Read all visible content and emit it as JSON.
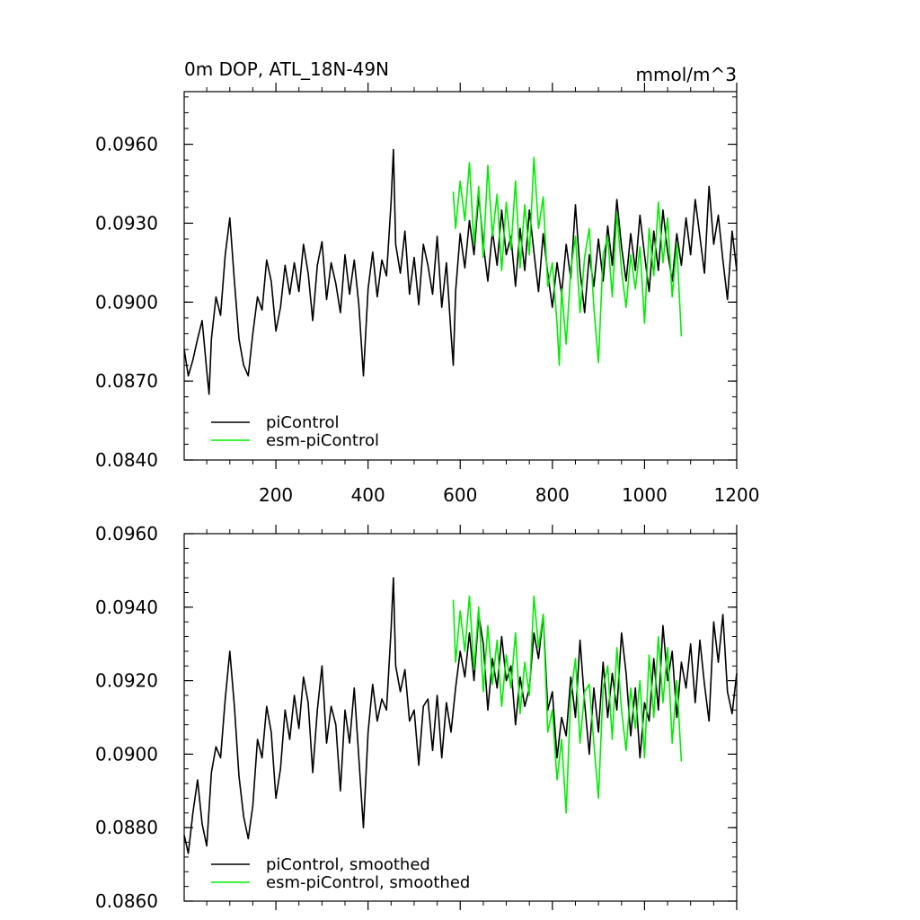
{
  "header": {
    "title": "0m DOP, ATL_18N-49N",
    "units": "mmol/m^3"
  },
  "colors": {
    "piControl": "#000000",
    "esm_piControl": "#00ee00",
    "frame": "#000000"
  },
  "chart_data": [
    {
      "type": "line",
      "title": "0m DOP, ATL_18N-49N",
      "units": "mmol/m^3",
      "xlabel": "",
      "ylabel": "",
      "xlim": [
        1,
        1200
      ],
      "ylim": [
        0.084,
        0.098
      ],
      "xticks": [
        200,
        400,
        600,
        800,
        1000,
        1200
      ],
      "xtick_labels": [
        "200",
        "400",
        "600",
        "800",
        "1000",
        "1200"
      ],
      "yticks": [
        0.084,
        0.087,
        0.09,
        0.093,
        0.096
      ],
      "ytick_labels": [
        "0.0840",
        "0.0870",
        "0.0900",
        "0.0930",
        "0.0960"
      ],
      "legend": [
        "piControl",
        "esm-piControl"
      ],
      "legend_position": "bottom-left",
      "series": [
        {
          "name": "piControl",
          "x": [
            1,
            10,
            20,
            30,
            40,
            50,
            55,
            60,
            70,
            80,
            90,
            100,
            110,
            120,
            130,
            140,
            150,
            160,
            170,
            180,
            190,
            200,
            210,
            220,
            230,
            240,
            250,
            260,
            270,
            280,
            290,
            300,
            310,
            320,
            330,
            340,
            350,
            360,
            370,
            380,
            390,
            400,
            410,
            420,
            430,
            440,
            450,
            455,
            460,
            470,
            480,
            490,
            500,
            510,
            520,
            530,
            540,
            550,
            560,
            570,
            580,
            585,
            590,
            600,
            610,
            620,
            630,
            640,
            650,
            660,
            670,
            680,
            690,
            700,
            710,
            720,
            730,
            740,
            750,
            760,
            770,
            780,
            790,
            800,
            810,
            820,
            830,
            840,
            850,
            860,
            870,
            880,
            890,
            900,
            910,
            920,
            930,
            940,
            950,
            960,
            970,
            980,
            990,
            1000,
            1010,
            1020,
            1030,
            1040,
            1050,
            1060,
            1070,
            1080,
            1090,
            1100,
            1110,
            1120,
            1130,
            1140,
            1150,
            1160,
            1170,
            1180,
            1190,
            1200
          ],
          "values": [
            0.0882,
            0.0872,
            0.0878,
            0.0886,
            0.0893,
            0.0874,
            0.0865,
            0.0886,
            0.0902,
            0.0895,
            0.0918,
            0.0932,
            0.0908,
            0.0886,
            0.0876,
            0.0872,
            0.0888,
            0.0902,
            0.0897,
            0.0916,
            0.0908,
            0.0889,
            0.0898,
            0.0914,
            0.0903,
            0.0915,
            0.0904,
            0.0922,
            0.0911,
            0.0893,
            0.0914,
            0.0923,
            0.0901,
            0.0915,
            0.0907,
            0.0896,
            0.0918,
            0.0903,
            0.0916,
            0.0899,
            0.0872,
            0.0905,
            0.0919,
            0.0902,
            0.0916,
            0.091,
            0.0938,
            0.0958,
            0.0922,
            0.0911,
            0.0927,
            0.0903,
            0.0917,
            0.0899,
            0.0922,
            0.0914,
            0.0903,
            0.0925,
            0.0898,
            0.0915,
            0.0888,
            0.0876,
            0.0904,
            0.0926,
            0.0913,
            0.0931,
            0.0918,
            0.0941,
            0.0922,
            0.0908,
            0.0927,
            0.0914,
            0.0935,
            0.0918,
            0.0925,
            0.0906,
            0.0928,
            0.0912,
            0.0935,
            0.0919,
            0.0904,
            0.0926,
            0.0911,
            0.0898,
            0.0915,
            0.0903,
            0.0922,
            0.0909,
            0.0937,
            0.0912,
            0.0896,
            0.0918,
            0.0906,
            0.0924,
            0.0908,
            0.0929,
            0.0914,
            0.0939,
            0.0921,
            0.0908,
            0.0926,
            0.0912,
            0.0933,
            0.0918,
            0.0904,
            0.0927,
            0.0912,
            0.0935,
            0.0919,
            0.0908,
            0.0926,
            0.0914,
            0.0932,
            0.0918,
            0.0939,
            0.0925,
            0.0911,
            0.0944,
            0.0922,
            0.0933,
            0.0916,
            0.0901,
            0.0927,
            0.0912
          ]
        },
        {
          "name": "esm-piControl",
          "x": [
            585,
            590,
            600,
            610,
            620,
            630,
            640,
            650,
            660,
            670,
            680,
            690,
            700,
            710,
            720,
            730,
            740,
            750,
            760,
            770,
            780,
            790,
            800,
            810,
            815,
            820,
            830,
            840,
            850,
            860,
            870,
            880,
            890,
            900,
            910,
            920,
            930,
            940,
            950,
            960,
            970,
            980,
            990,
            1000,
            1010,
            1020,
            1030,
            1040,
            1050,
            1060,
            1070,
            1080
          ],
          "values": [
            0.0942,
            0.0928,
            0.0946,
            0.0931,
            0.0953,
            0.0922,
            0.0944,
            0.0917,
            0.0952,
            0.0925,
            0.0941,
            0.0912,
            0.0938,
            0.092,
            0.0946,
            0.0913,
            0.0937,
            0.0918,
            0.0955,
            0.0928,
            0.094,
            0.0906,
            0.0915,
            0.0892,
            0.0876,
            0.0905,
            0.0884,
            0.0912,
            0.0925,
            0.0896,
            0.0917,
            0.0928,
            0.0898,
            0.0877,
            0.0918,
            0.0925,
            0.0902,
            0.0934,
            0.0912,
            0.0898,
            0.0918,
            0.0905,
            0.0921,
            0.0892,
            0.0928,
            0.091,
            0.0938,
            0.0915,
            0.0932,
            0.0902,
            0.0922,
            0.0887
          ]
        }
      ]
    },
    {
      "type": "line",
      "xlabel": "",
      "ylabel": "",
      "xlim": [
        1,
        1200
      ],
      "ylim": [
        0.086,
        0.096
      ],
      "xticks": [
        200,
        400,
        600,
        800,
        1000,
        1200
      ],
      "yticks": [
        0.086,
        0.088,
        0.09,
        0.092,
        0.094,
        0.096
      ],
      "ytick_labels": [
        "0.0860",
        "0.0880",
        "0.0900",
        "0.0920",
        "0.0940",
        "0.0960"
      ],
      "legend": [
        "piControl, smoothed",
        "esm-piControl, smoothed"
      ],
      "legend_position": "bottom-left",
      "series": [
        {
          "name": "piControl, smoothed",
          "x": [
            1,
            10,
            20,
            30,
            40,
            50,
            60,
            70,
            80,
            90,
            100,
            110,
            120,
            130,
            140,
            150,
            160,
            170,
            180,
            190,
            200,
            210,
            220,
            230,
            240,
            250,
            260,
            270,
            280,
            290,
            300,
            310,
            320,
            330,
            340,
            350,
            360,
            370,
            380,
            390,
            400,
            410,
            420,
            430,
            440,
            450,
            455,
            460,
            470,
            480,
            490,
            500,
            510,
            520,
            530,
            540,
            550,
            560,
            570,
            580,
            590,
            600,
            610,
            620,
            630,
            640,
            650,
            660,
            670,
            680,
            690,
            700,
            710,
            720,
            730,
            740,
            750,
            760,
            770,
            780,
            790,
            800,
            810,
            820,
            830,
            840,
            850,
            860,
            870,
            880,
            890,
            900,
            910,
            920,
            930,
            940,
            950,
            960,
            970,
            980,
            990,
            1000,
            1010,
            1020,
            1030,
            1040,
            1050,
            1060,
            1070,
            1080,
            1090,
            1100,
            1110,
            1120,
            1130,
            1140,
            1150,
            1160,
            1170,
            1180,
            1190,
            1200
          ],
          "values": [
            0.0878,
            0.0873,
            0.0884,
            0.0893,
            0.0881,
            0.0875,
            0.0895,
            0.0902,
            0.0899,
            0.0915,
            0.0928,
            0.0913,
            0.0894,
            0.0883,
            0.0877,
            0.0886,
            0.0904,
            0.0899,
            0.0913,
            0.0906,
            0.0888,
            0.0896,
            0.0912,
            0.0904,
            0.0916,
            0.0907,
            0.0921,
            0.0914,
            0.0895,
            0.0912,
            0.0924,
            0.0903,
            0.0913,
            0.0908,
            0.089,
            0.0912,
            0.0903,
            0.0918,
            0.0899,
            0.088,
            0.0906,
            0.0919,
            0.0909,
            0.0915,
            0.0912,
            0.0934,
            0.0948,
            0.0924,
            0.0917,
            0.0923,
            0.0909,
            0.0912,
            0.0897,
            0.0913,
            0.0915,
            0.0901,
            0.0916,
            0.0899,
            0.0914,
            0.0906,
            0.0918,
            0.0928,
            0.0921,
            0.0933,
            0.092,
            0.0938,
            0.093,
            0.0912,
            0.0926,
            0.0918,
            0.0932,
            0.092,
            0.0924,
            0.0908,
            0.0921,
            0.0913,
            0.0918,
            0.0933,
            0.0926,
            0.0938,
            0.0912,
            0.0917,
            0.0899,
            0.091,
            0.0905,
            0.0921,
            0.091,
            0.0931,
            0.0914,
            0.09,
            0.0918,
            0.0906,
            0.0925,
            0.091,
            0.0922,
            0.0912,
            0.0933,
            0.0922,
            0.0905,
            0.0918,
            0.0899,
            0.0914,
            0.0909,
            0.0926,
            0.0912,
            0.0935,
            0.092,
            0.0928,
            0.091,
            0.0925,
            0.0918,
            0.093,
            0.0914,
            0.0931,
            0.0919,
            0.0909,
            0.0936,
            0.0925,
            0.0938,
            0.0917,
            0.0911,
            0.0922
          ]
        },
        {
          "name": "esm-piControl, smoothed",
          "x": [
            585,
            590,
            600,
            610,
            620,
            630,
            640,
            650,
            660,
            670,
            680,
            690,
            700,
            710,
            720,
            730,
            740,
            750,
            760,
            770,
            780,
            790,
            800,
            810,
            820,
            830,
            840,
            850,
            860,
            870,
            880,
            890,
            900,
            910,
            920,
            930,
            940,
            950,
            960,
            970,
            980,
            990,
            1000,
            1010,
            1020,
            1030,
            1040,
            1050,
            1060,
            1070,
            1080
          ],
          "values": [
            0.0942,
            0.0925,
            0.0939,
            0.0928,
            0.0943,
            0.0923,
            0.094,
            0.0917,
            0.0935,
            0.0919,
            0.0931,
            0.0913,
            0.0927,
            0.0918,
            0.0933,
            0.0911,
            0.0925,
            0.0916,
            0.0943,
            0.0929,
            0.0938,
            0.0906,
            0.0912,
            0.0893,
            0.0904,
            0.0884,
            0.0916,
            0.0926,
            0.0903,
            0.0917,
            0.0919,
            0.0903,
            0.0888,
            0.0918,
            0.0924,
            0.0904,
            0.0929,
            0.0912,
            0.0901,
            0.0918,
            0.0907,
            0.092,
            0.0899,
            0.0927,
            0.091,
            0.0932,
            0.0914,
            0.0929,
            0.0903,
            0.092,
            0.0898
          ]
        }
      ]
    }
  ]
}
